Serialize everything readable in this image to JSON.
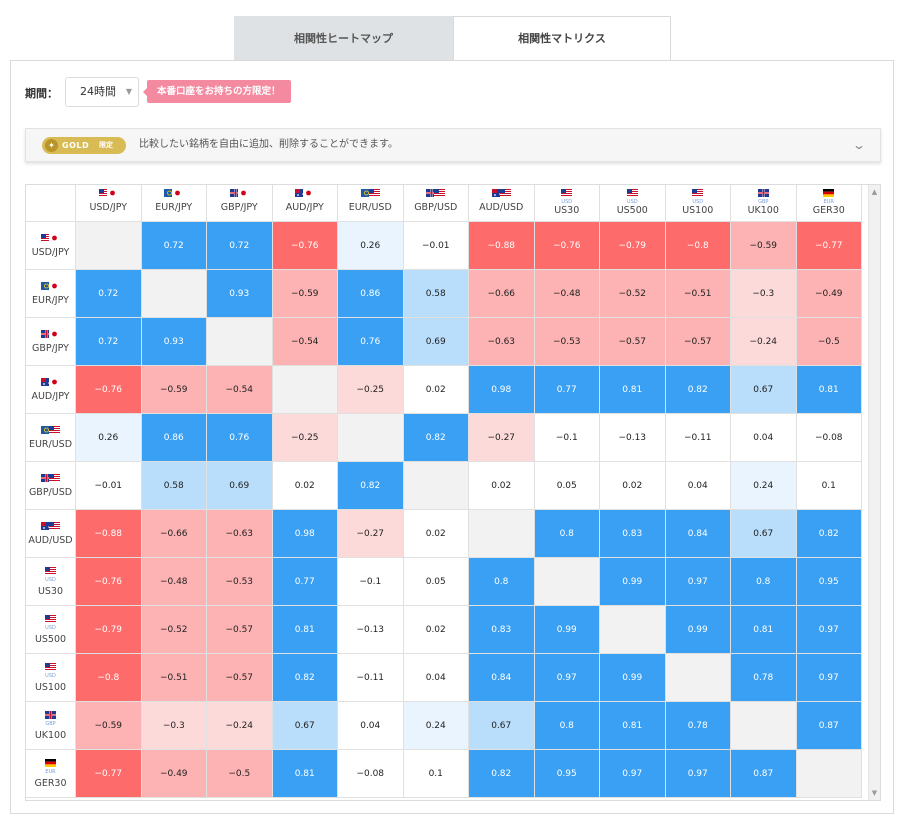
{
  "tabs": [
    {
      "label": "相関性ヒートマップ",
      "active": false
    },
    {
      "label": "相関性マトリクス",
      "active": true
    }
  ],
  "period": {
    "label": "期間：",
    "selected": "24時間",
    "badge": "本番口座をお持ちの方限定！"
  },
  "gold": {
    "pill": "GOLD",
    "pill_sub": "限定",
    "text": "比較したい銘柄を自由に追加、削除することができます。"
  },
  "colors": {
    "strong_positive": "#3aa0f4",
    "medium_positive": "#b9defb",
    "weak_positive": "#e9f4fe",
    "neutral": "#ffffff",
    "weak_negative": "#fddada",
    "medium_negative": "#fdb3b3",
    "strong_negative": "#fd6b6b",
    "diagonal": "#f2f2f2"
  },
  "chart_data": {
    "type": "heatmap",
    "categories": [
      "USD/JPY",
      "EUR/JPY",
      "GBP/JPY",
      "AUD/JPY",
      "EUR/USD",
      "GBP/USD",
      "AUD/USD",
      "US30",
      "US500",
      "US100",
      "UK100",
      "GER30"
    ],
    "flags": [
      [
        "us",
        "jp"
      ],
      [
        "eu",
        "jp"
      ],
      [
        "gb",
        "jp"
      ],
      [
        "au",
        "jp"
      ],
      [
        "eu",
        "us"
      ],
      [
        "gb",
        "us"
      ],
      [
        "au",
        "us"
      ],
      [
        "us"
      ],
      [
        "us"
      ],
      [
        "us"
      ],
      [
        "gb"
      ],
      [
        "de"
      ]
    ],
    "flag_sub": [
      "",
      "",
      "",
      "",
      "",
      "",
      "",
      "USD",
      "USD",
      "USD",
      "GBP",
      "EUR"
    ],
    "matrix": [
      [
        null,
        0.72,
        0.72,
        -0.76,
        0.26,
        -0.01,
        -0.88,
        -0.76,
        -0.79,
        -0.8,
        -0.59,
        -0.77
      ],
      [
        0.72,
        null,
        0.93,
        -0.59,
        0.86,
        0.58,
        -0.66,
        -0.48,
        -0.52,
        -0.51,
        -0.3,
        -0.49
      ],
      [
        0.72,
        0.93,
        null,
        -0.54,
        0.76,
        0.69,
        -0.63,
        -0.53,
        -0.57,
        -0.57,
        -0.24,
        -0.5
      ],
      [
        -0.76,
        -0.59,
        -0.54,
        null,
        -0.25,
        0.02,
        0.98,
        0.77,
        0.81,
        0.82,
        0.67,
        0.81
      ],
      [
        0.26,
        0.86,
        0.76,
        -0.25,
        null,
        0.82,
        -0.27,
        -0.1,
        -0.13,
        -0.11,
        0.04,
        -0.08
      ],
      [
        -0.01,
        0.58,
        0.69,
        0.02,
        0.82,
        null,
        0.02,
        0.05,
        0.02,
        0.04,
        0.24,
        0.1
      ],
      [
        -0.88,
        -0.66,
        -0.63,
        0.98,
        -0.27,
        0.02,
        null,
        0.8,
        0.83,
        0.84,
        0.67,
        0.82
      ],
      [
        -0.76,
        -0.48,
        -0.53,
        0.77,
        -0.1,
        0.05,
        0.8,
        null,
        0.99,
        0.97,
        0.8,
        0.95
      ],
      [
        -0.79,
        -0.52,
        -0.57,
        0.81,
        -0.13,
        0.02,
        0.83,
        0.99,
        null,
        0.99,
        0.81,
        0.97
      ],
      [
        -0.8,
        -0.51,
        -0.57,
        0.82,
        -0.11,
        0.04,
        0.84,
        0.97,
        0.99,
        null,
        0.78,
        0.97
      ],
      [
        -0.59,
        -0.3,
        -0.24,
        0.67,
        0.04,
        0.24,
        0.67,
        0.8,
        0.81,
        0.78,
        null,
        0.87
      ],
      [
        -0.77,
        -0.49,
        -0.5,
        0.81,
        -0.08,
        0.1,
        0.82,
        0.95,
        0.97,
        0.97,
        0.87,
        null
      ]
    ]
  }
}
